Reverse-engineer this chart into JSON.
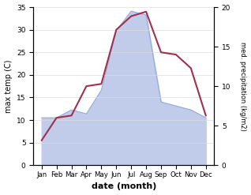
{
  "months": [
    "Jan",
    "Feb",
    "Mar",
    "Apr",
    "May",
    "Jun",
    "Jul",
    "Aug",
    "Sep",
    "Oct",
    "Nov",
    "Dec"
  ],
  "temp_max": [
    5.5,
    10.5,
    11.0,
    17.5,
    18.0,
    30.0,
    33.0,
    34.0,
    25.0,
    24.5,
    21.5,
    11.0
  ],
  "precipitation": [
    6.0,
    6.0,
    7.0,
    6.5,
    9.5,
    17.0,
    19.5,
    19.0,
    8.0,
    7.5,
    7.0,
    6.0
  ],
  "temp_color": "#a03050",
  "precip_fill_color": "#c0ccea",
  "precip_line_color": "#9aaad8",
  "temp_ylim": [
    0,
    35
  ],
  "precip_ylim": [
    0,
    20
  ],
  "temp_yticks": [
    0,
    5,
    10,
    15,
    20,
    25,
    30,
    35
  ],
  "precip_yticks": [
    0,
    5,
    10,
    15,
    20
  ],
  "xlabel": "date (month)",
  "ylabel_left": "max temp (C)",
  "ylabel_right": "med. precipitation (kg/m2)",
  "bg_color": "#ffffff"
}
